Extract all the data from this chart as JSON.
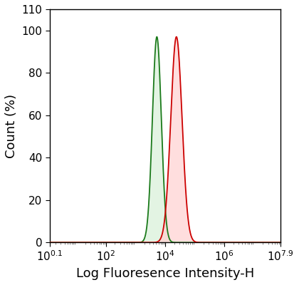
{
  "xlim_log": [
    0.1,
    7.9
  ],
  "ylim": [
    0,
    110
  ],
  "yticks": [
    0,
    20,
    40,
    60,
    80,
    100,
    110
  ],
  "xtick_positions": [
    0.1,
    2,
    4,
    6,
    7.9
  ],
  "green_peak_log": 3.72,
  "green_peak_height": 97,
  "green_sigma_log": 0.15,
  "red_peak_log": 4.38,
  "red_peak_height": 97,
  "red_sigma_log": 0.19,
  "green_line_color": "#1a7a1a",
  "green_fill_color": "#d8f0d8",
  "green_fill_alpha": 0.7,
  "red_line_color": "#cc0000",
  "red_fill_color": "#ffd0d0",
  "red_fill_alpha": 0.7,
  "xlabel": "Log Fluoresence Intensity-H",
  "ylabel": "Count (%)",
  "background_color": "#ffffff",
  "xlabel_fontsize": 13,
  "ylabel_fontsize": 13,
  "tick_fontsize": 11
}
